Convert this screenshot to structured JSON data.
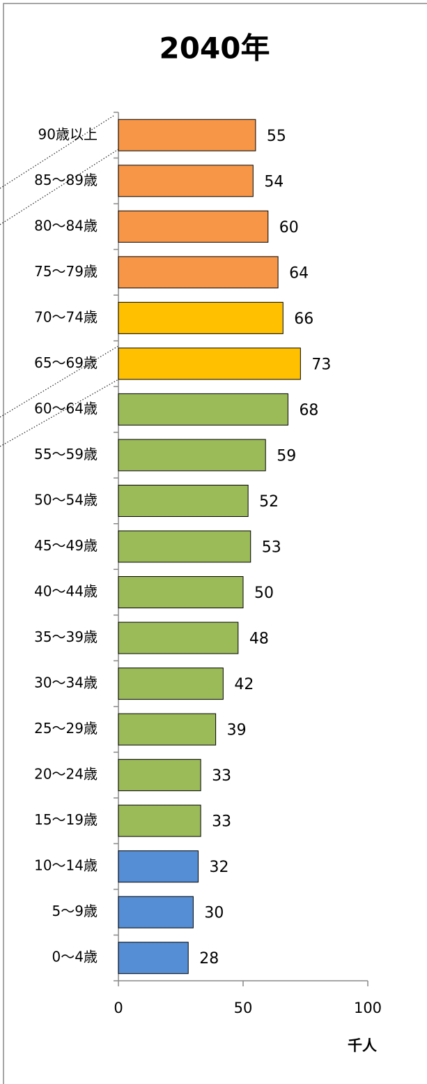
{
  "chart_data": {
    "type": "bar",
    "orientation": "horizontal",
    "title": "2040年",
    "x_label": "千人",
    "categories": [
      "90歳以上",
      "85～89歳",
      "80～84歳",
      "75～79歳",
      "70～74歳",
      "65～69歳",
      "60～64歳",
      "55～59歳",
      "50～54歳",
      "45～49歳",
      "40～44歳",
      "35～39歳",
      "30～34歳",
      "25～29歳",
      "20～24歳",
      "15～19歳",
      "10～14歳",
      "5～9歳",
      "0～4歳"
    ],
    "values": [
      55,
      54,
      60,
      64,
      66,
      73,
      68,
      59,
      52,
      53,
      50,
      48,
      42,
      39,
      33,
      33,
      32,
      30,
      28
    ],
    "colors": [
      "#f79646",
      "#f79646",
      "#f79646",
      "#f79646",
      "#ffc000",
      "#ffc000",
      "#9bbb59",
      "#9bbb59",
      "#9bbb59",
      "#9bbb59",
      "#9bbb59",
      "#9bbb59",
      "#9bbb59",
      "#9bbb59",
      "#9bbb59",
      "#9bbb59",
      "#558ed5",
      "#558ed5",
      "#558ed5"
    ],
    "xlim": [
      0,
      100
    ],
    "xticks": [
      0,
      50,
      100
    ],
    "grid": false
  }
}
